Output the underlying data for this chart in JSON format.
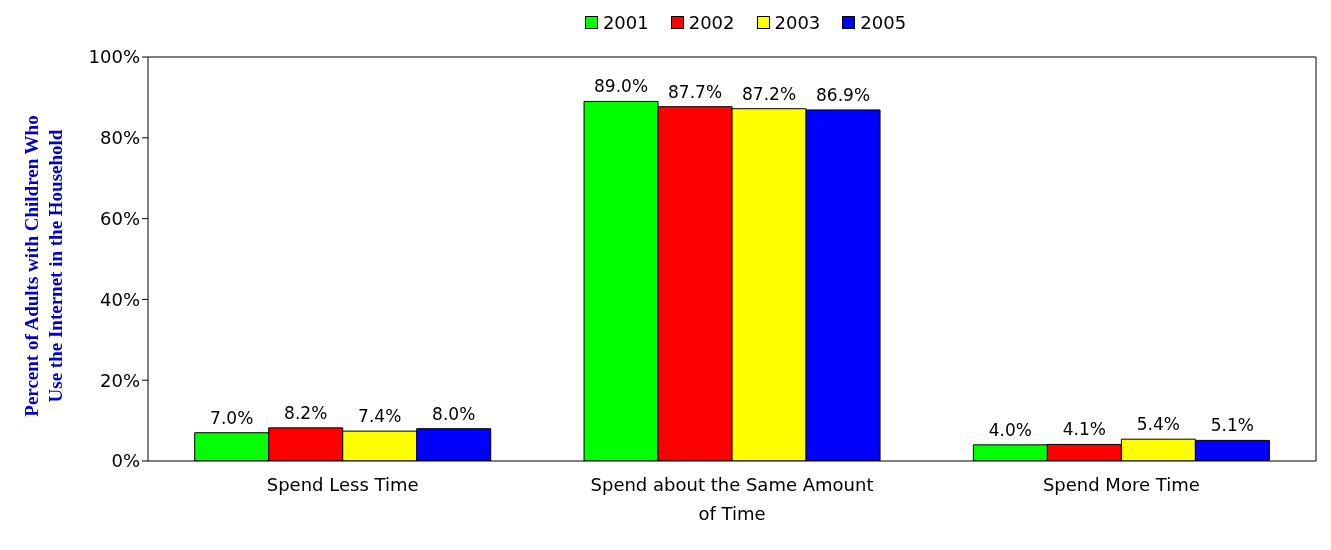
{
  "chart_data": {
    "type": "bar",
    "ylabel": "Percent of Adults with Children Who Use the Internet in the Household",
    "categories": [
      "Spend Less Time",
      "Spend about the Same Amount of Time",
      "Spend More Time"
    ],
    "series": [
      {
        "name": "2001",
        "color": "#00ff00",
        "values": [
          7.0,
          89.0,
          4.0
        ],
        "value_labels": [
          "7.0%",
          "89.0%",
          "4.0%"
        ]
      },
      {
        "name": "2002",
        "color": "#ff0000",
        "values": [
          8.2,
          87.7,
          4.1
        ],
        "value_labels": [
          "8.2%",
          "87.7%",
          "4.1%"
        ]
      },
      {
        "name": "2003",
        "color": "#ffff00",
        "values": [
          7.4,
          87.2,
          5.4
        ],
        "value_labels": [
          "7.4%",
          "87.2%",
          "5.4%"
        ]
      },
      {
        "name": "2005",
        "color": "#0000ff",
        "values": [
          8.0,
          86.9,
          5.1
        ],
        "value_labels": [
          "8.0%",
          "86.9%",
          "5.1%"
        ]
      }
    ],
    "ylim": [
      0,
      100
    ],
    "yticks": [
      {
        "value": 0,
        "label": "0%"
      },
      {
        "value": 20,
        "label": "20%"
      },
      {
        "value": 40,
        "label": "40%"
      },
      {
        "value": 60,
        "label": "60%"
      },
      {
        "value": 80,
        "label": "80%"
      },
      {
        "value": 100,
        "label": "100%"
      }
    ],
    "grid": false,
    "legend": "top"
  }
}
